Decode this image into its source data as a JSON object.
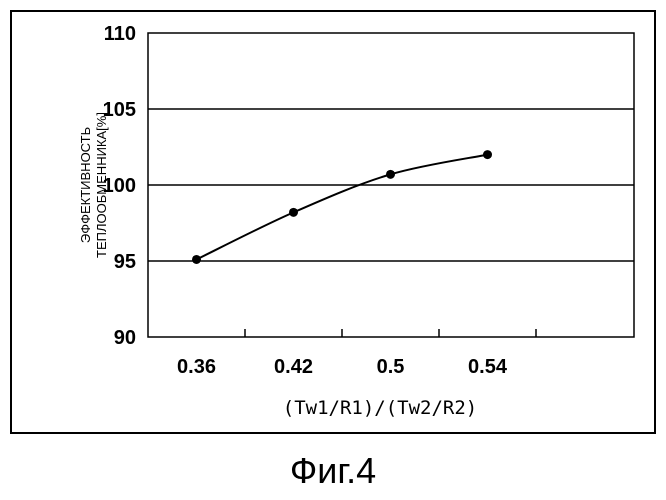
{
  "figure_caption": "Фиг.4",
  "chart_data": {
    "type": "line",
    "categories": [
      "0.36",
      "0.42",
      "0.5",
      "0.54"
    ],
    "series": [
      {
        "values": [
          95.1,
          98.2,
          100.7,
          102.0
        ]
      }
    ],
    "xlabel": "(Tw1/R1)/(Tw2/R2)",
    "ylabel_lines": [
      "ЭФФЕКТИВНОСТЬ",
      "ТЕПЛООБМЕННИКА[%]"
    ],
    "ylim": [
      90,
      110
    ],
    "yticks": [
      90,
      95,
      100,
      105,
      110
    ],
    "grid": "horizontal",
    "legend": "none",
    "colors": {
      "line": "#000000",
      "grid": "#000000",
      "marker": "#000000"
    }
  }
}
